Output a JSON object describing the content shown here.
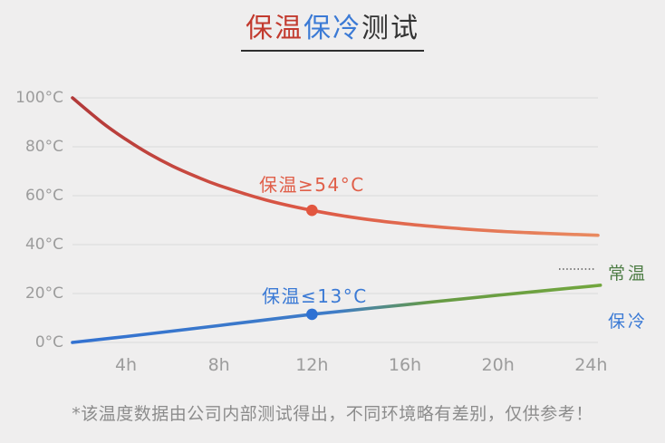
{
  "title": {
    "warm": "保温",
    "cold": "保冷",
    "test": "测试"
  },
  "footnote": "*该温度数据由公司内部测试得出，不同环境略有差别，仅供参考！",
  "colors": {
    "background": "#efeeee",
    "title_warm": "#c23a2e",
    "title_cold": "#3b7ad5",
    "title_dark": "#333333",
    "underline": "#2f2f2f",
    "axis_text": "#9c9c9c",
    "grid_line": "#d9d9d9",
    "warm_annotation": "#e05f49",
    "cold_annotation": "#3b7ad5",
    "room_temp_text": "#4e7d45",
    "cold_side_text": "#3b7ad5",
    "footnote_text": "#8c8c8c"
  },
  "chart_data": {
    "type": "line",
    "title": "保温保冷测试",
    "x_unit": "hours",
    "y_unit": "°C",
    "x_range": [
      1.7,
      24.3
    ],
    "y_range": [
      0,
      100
    ],
    "grid": true,
    "x_tick_values": [
      4,
      8,
      12,
      16,
      20,
      24
    ],
    "x_tick_labels": [
      "4h",
      "8h",
      "12h",
      "16h",
      "20h",
      "24h"
    ],
    "y_tick_values": [
      0,
      20,
      40,
      60,
      80,
      100
    ],
    "y_tick_labels": [
      "0°C",
      "20°C",
      "40°C",
      "60°C",
      "80°C",
      "100°C"
    ],
    "series": [
      {
        "id": "warm",
        "name": "保温",
        "label": "保温≥54°C",
        "points": [
          [
            1.7,
            100
          ],
          [
            3,
            89.7
          ],
          [
            4,
            83
          ],
          [
            5,
            77.1
          ],
          [
            6,
            72.1
          ],
          [
            7,
            67.9
          ],
          [
            8,
            64.2
          ],
          [
            10,
            58.3
          ],
          [
            12,
            54
          ],
          [
            14,
            50.8
          ],
          [
            16,
            48.5
          ],
          [
            18,
            46.8
          ],
          [
            20,
            45.5
          ],
          [
            22,
            44.6
          ],
          [
            24,
            43.9
          ],
          [
            24.3,
            43.8
          ]
        ],
        "marker_point": [
          12,
          54
        ],
        "marker_color": "#e2563f",
        "gradient": [
          {
            "offset": "0%",
            "color": "#b23939"
          },
          {
            "offset": "45%",
            "color": "#dd5946"
          },
          {
            "offset": "100%",
            "color": "#e98a60"
          }
        ]
      },
      {
        "id": "cold",
        "name": "保冷",
        "label": "保温≤13°C",
        "side_label": "保冷",
        "points": [
          [
            1.7,
            0
          ],
          [
            4,
            2.4
          ],
          [
            8,
            6.9
          ],
          [
            12,
            11.5
          ],
          [
            16,
            15.4
          ],
          [
            20,
            19.3
          ],
          [
            24,
            23
          ],
          [
            24.3,
            23.3
          ]
        ],
        "marker_point": [
          12,
          11.5
        ],
        "marker_color": "#2e71d3",
        "gradient": [
          {
            "offset": "0%",
            "color": "#3372d1"
          },
          {
            "offset": "50%",
            "color": "#3f7cc7"
          },
          {
            "offset": "68%",
            "color": "#669a44"
          },
          {
            "offset": "100%",
            "color": "#72a63e"
          }
        ]
      }
    ],
    "reference_line": {
      "label": "常温",
      "value": 30,
      "style": "dashed",
      "color": "#3a3a3a"
    }
  }
}
